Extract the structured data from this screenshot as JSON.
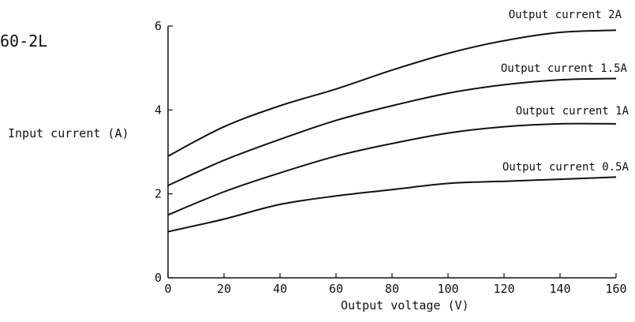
{
  "figure_id": "60-2L",
  "chart_data": {
    "type": "line",
    "xlabel": "Output voltage (V)",
    "ylabel": "Input current (A)",
    "xlim": [
      0,
      160
    ],
    "ylim": [
      0,
      6
    ],
    "xticks": [
      0,
      20,
      40,
      60,
      80,
      100,
      120,
      140,
      160
    ],
    "yticks": [
      0,
      2,
      4,
      6
    ],
    "grid": false,
    "x": [
      0,
      20,
      40,
      60,
      80,
      100,
      120,
      140,
      160
    ],
    "series": [
      {
        "name": "Output current  2A",
        "values": [
          2.9,
          3.6,
          4.1,
          4.5,
          4.95,
          5.35,
          5.65,
          5.85,
          5.9
        ]
      },
      {
        "name": "Output current  1.5A",
        "values": [
          2.2,
          2.8,
          3.3,
          3.75,
          4.1,
          4.4,
          4.6,
          4.72,
          4.75
        ]
      },
      {
        "name": "Output current  1A",
        "values": [
          1.5,
          2.05,
          2.5,
          2.9,
          3.2,
          3.45,
          3.6,
          3.67,
          3.67
        ]
      },
      {
        "name": "Output current  0.5A",
        "values": [
          1.1,
          1.4,
          1.75,
          1.95,
          2.1,
          2.25,
          2.3,
          2.35,
          2.4
        ]
      }
    ],
    "colors": {
      "line": "#111111",
      "axis": "#111111"
    }
  }
}
